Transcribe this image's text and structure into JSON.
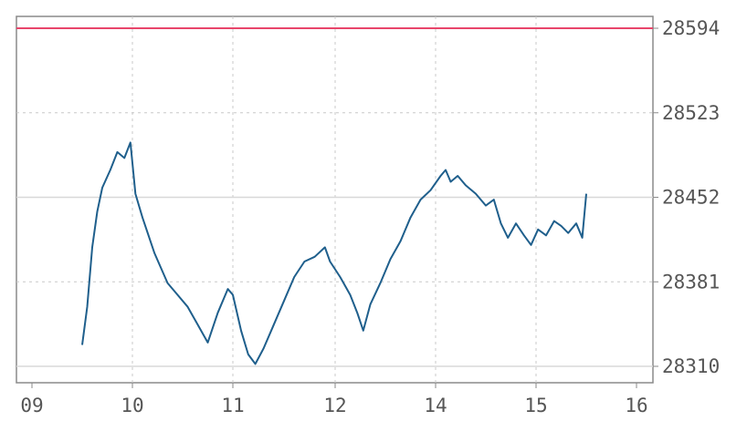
{
  "chart_data": {
    "type": "line",
    "grid": true,
    "x_ticks": [
      "09",
      "10",
      "11",
      "12",
      "14",
      "15",
      "16"
    ],
    "y_ticks": [
      28310,
      28381,
      28452,
      28523,
      28594
    ],
    "ylim": [
      28310,
      28594
    ],
    "reference_lines": [
      {
        "value": 28594,
        "color": "#e8456b"
      },
      {
        "value": 28452,
        "color": "#d8d8d8"
      },
      {
        "value": 28310,
        "color": "#d8d8d8"
      }
    ],
    "series": [
      {
        "color": "#1f5f8c",
        "points": [
          [
            0.0,
            28328
          ],
          [
            0.05,
            28360
          ],
          [
            0.1,
            28410
          ],
          [
            0.15,
            28440
          ],
          [
            0.2,
            28460
          ],
          [
            0.28,
            28475
          ],
          [
            0.35,
            28490
          ],
          [
            0.42,
            28485
          ],
          [
            0.48,
            28498
          ],
          [
            0.53,
            28455
          ],
          [
            0.6,
            28435
          ],
          [
            0.72,
            28405
          ],
          [
            0.85,
            28380
          ],
          [
            0.95,
            28370
          ],
          [
            1.05,
            28360
          ],
          [
            1.15,
            28345
          ],
          [
            1.25,
            28330
          ],
          [
            1.35,
            28355
          ],
          [
            1.45,
            28375
          ],
          [
            1.5,
            28370
          ],
          [
            1.58,
            28340
          ],
          [
            1.65,
            28320
          ],
          [
            1.72,
            28312
          ],
          [
            1.8,
            28325
          ],
          [
            1.9,
            28345
          ],
          [
            2.0,
            28365
          ],
          [
            2.1,
            28385
          ],
          [
            2.2,
            28398
          ],
          [
            2.3,
            28402
          ],
          [
            2.4,
            28410
          ],
          [
            2.45,
            28398
          ],
          [
            2.55,
            28385
          ],
          [
            2.65,
            28370
          ],
          [
            2.72,
            28355
          ],
          [
            2.78,
            28340
          ],
          [
            2.85,
            28362
          ],
          [
            2.95,
            28380
          ],
          [
            3.05,
            28400
          ],
          [
            3.15,
            28415
          ],
          [
            3.25,
            28435
          ],
          [
            3.35,
            28450
          ],
          [
            3.45,
            28458
          ],
          [
            3.55,
            28470
          ],
          [
            3.6,
            28475
          ],
          [
            3.65,
            28465
          ],
          [
            3.72,
            28470
          ],
          [
            3.8,
            28462
          ],
          [
            3.9,
            28455
          ],
          [
            4.0,
            28445
          ],
          [
            4.08,
            28450
          ],
          [
            4.15,
            28430
          ],
          [
            4.22,
            28418
          ],
          [
            4.3,
            28430
          ],
          [
            4.38,
            28420
          ],
          [
            4.45,
            28412
          ],
          [
            4.52,
            28425
          ],
          [
            4.6,
            28420
          ],
          [
            4.68,
            28432
          ],
          [
            4.75,
            28428
          ],
          [
            4.82,
            28422
          ],
          [
            4.9,
            28430
          ],
          [
            4.96,
            28418
          ],
          [
            5.0,
            28455
          ]
        ]
      }
    ]
  }
}
